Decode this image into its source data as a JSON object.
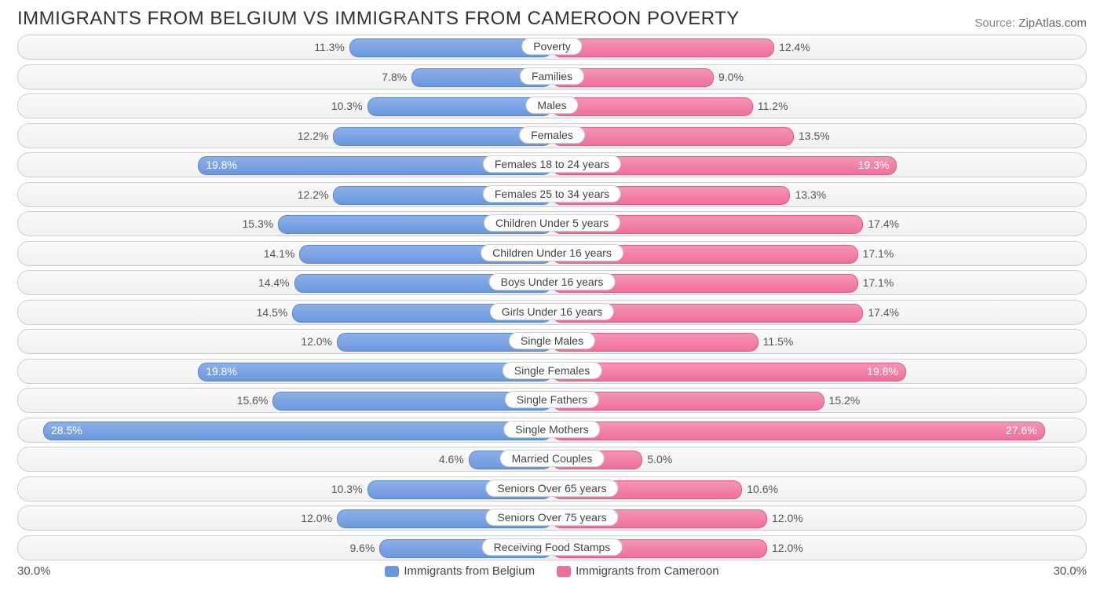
{
  "title": "IMMIGRANTS FROM BELGIUM VS IMMIGRANTS FROM CAMEROON POVERTY",
  "source_prefix": "Source: ",
  "source_name": "ZipAtlas.com",
  "chart": {
    "type": "diverging-bar",
    "axis_max": 30.0,
    "axis_format_left": "30.0%",
    "axis_format_right": "30.0%",
    "value_inside_threshold": 19.0,
    "colors": {
      "left_bar_top": "#8db0e8",
      "left_bar_bottom": "#6a98de",
      "left_bar_border": "#5a86c9",
      "right_bar_top": "#f495b6",
      "right_bar_bottom": "#ef6f9b",
      "right_bar_border": "#e05a87",
      "track_border": "#cfcfcf",
      "track_bg_top": "#fafafa",
      "track_bg_bottom": "#f0f0f0",
      "text": "#555555",
      "text_inside": "#ffffff",
      "background": "#ffffff"
    },
    "legend": [
      {
        "label": "Immigrants from Belgium",
        "color": "#6a98de"
      },
      {
        "label": "Immigrants from Cameroon",
        "color": "#ef6f9b"
      }
    ],
    "rows": [
      {
        "category": "Poverty",
        "left_val": 11.3,
        "left_label": "11.3%",
        "right_val": 12.4,
        "right_label": "12.4%"
      },
      {
        "category": "Families",
        "left_val": 7.8,
        "left_label": "7.8%",
        "right_val": 9.0,
        "right_label": "9.0%"
      },
      {
        "category": "Males",
        "left_val": 10.3,
        "left_label": "10.3%",
        "right_val": 11.2,
        "right_label": "11.2%"
      },
      {
        "category": "Females",
        "left_val": 12.2,
        "left_label": "12.2%",
        "right_val": 13.5,
        "right_label": "13.5%"
      },
      {
        "category": "Females 18 to 24 years",
        "left_val": 19.8,
        "left_label": "19.8%",
        "right_val": 19.3,
        "right_label": "19.3%"
      },
      {
        "category": "Females 25 to 34 years",
        "left_val": 12.2,
        "left_label": "12.2%",
        "right_val": 13.3,
        "right_label": "13.3%"
      },
      {
        "category": "Children Under 5 years",
        "left_val": 15.3,
        "left_label": "15.3%",
        "right_val": 17.4,
        "right_label": "17.4%"
      },
      {
        "category": "Children Under 16 years",
        "left_val": 14.1,
        "left_label": "14.1%",
        "right_val": 17.1,
        "right_label": "17.1%"
      },
      {
        "category": "Boys Under 16 years",
        "left_val": 14.4,
        "left_label": "14.4%",
        "right_val": 17.1,
        "right_label": "17.1%"
      },
      {
        "category": "Girls Under 16 years",
        "left_val": 14.5,
        "left_label": "14.5%",
        "right_val": 17.4,
        "right_label": "17.4%"
      },
      {
        "category": "Single Males",
        "left_val": 12.0,
        "left_label": "12.0%",
        "right_val": 11.5,
        "right_label": "11.5%"
      },
      {
        "category": "Single Females",
        "left_val": 19.8,
        "left_label": "19.8%",
        "right_val": 19.8,
        "right_label": "19.8%"
      },
      {
        "category": "Single Fathers",
        "left_val": 15.6,
        "left_label": "15.6%",
        "right_val": 15.2,
        "right_label": "15.2%"
      },
      {
        "category": "Single Mothers",
        "left_val": 28.5,
        "left_label": "28.5%",
        "right_val": 27.6,
        "right_label": "27.6%"
      },
      {
        "category": "Married Couples",
        "left_val": 4.6,
        "left_label": "4.6%",
        "right_val": 5.0,
        "right_label": "5.0%"
      },
      {
        "category": "Seniors Over 65 years",
        "left_val": 10.3,
        "left_label": "10.3%",
        "right_val": 10.6,
        "right_label": "10.6%"
      },
      {
        "category": "Seniors Over 75 years",
        "left_val": 12.0,
        "left_label": "12.0%",
        "right_val": 12.0,
        "right_label": "12.0%"
      },
      {
        "category": "Receiving Food Stamps",
        "left_val": 9.6,
        "left_label": "9.6%",
        "right_val": 12.0,
        "right_label": "12.0%"
      }
    ]
  }
}
